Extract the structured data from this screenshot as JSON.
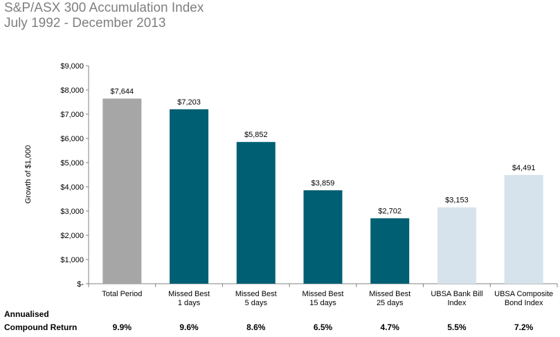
{
  "header": {
    "title": "S&P/ASX 300 Accumulation Index",
    "subtitle": "July 1992 - December 2013"
  },
  "chart_data": {
    "type": "bar",
    "title": "S&P/ASX 300 Accumulation Index",
    "subtitle": "July 1992 - December 2013",
    "ylabel": "Growth of $1,000",
    "xlabel": "",
    "ylim": [
      0,
      9000
    ],
    "yticks": [
      0,
      1000,
      2000,
      3000,
      4000,
      5000,
      6000,
      7000,
      8000,
      9000
    ],
    "ytick_labels": [
      "$-",
      "$1,000",
      "$2,000",
      "$3,000",
      "$4,000",
      "$5,000",
      "$6,000",
      "$7,000",
      "$8,000",
      "$9,000"
    ],
    "grid": false,
    "categories": [
      [
        "Total Period"
      ],
      [
        "Missed Best",
        "1 days"
      ],
      [
        "Missed Best",
        "5 days"
      ],
      [
        "Missed Best",
        "15 days"
      ],
      [
        "Missed Best",
        "25 days"
      ],
      [
        "UBSA Bank Bill",
        "Index"
      ],
      [
        "UBSA Composite",
        "Bond Index"
      ]
    ],
    "values": [
      7644,
      7203,
      5852,
      3859,
      2702,
      3153,
      4491
    ],
    "value_labels": [
      "$7,644",
      "$7,203",
      "$5,852",
      "$3,859",
      "$2,702",
      "$3,153",
      "$4,491"
    ],
    "colors": [
      "#a6a6a6",
      "#005f73",
      "#005f73",
      "#005f73",
      "#005f73",
      "#d6e3ec",
      "#d6e3ec"
    ]
  },
  "footer": {
    "label_line1": "Annualised",
    "label_line2": "Compound Return",
    "returns": [
      "9.9%",
      "9.6%",
      "8.6%",
      "6.5%",
      "4.7%",
      "5.5%",
      "7.2%"
    ]
  }
}
